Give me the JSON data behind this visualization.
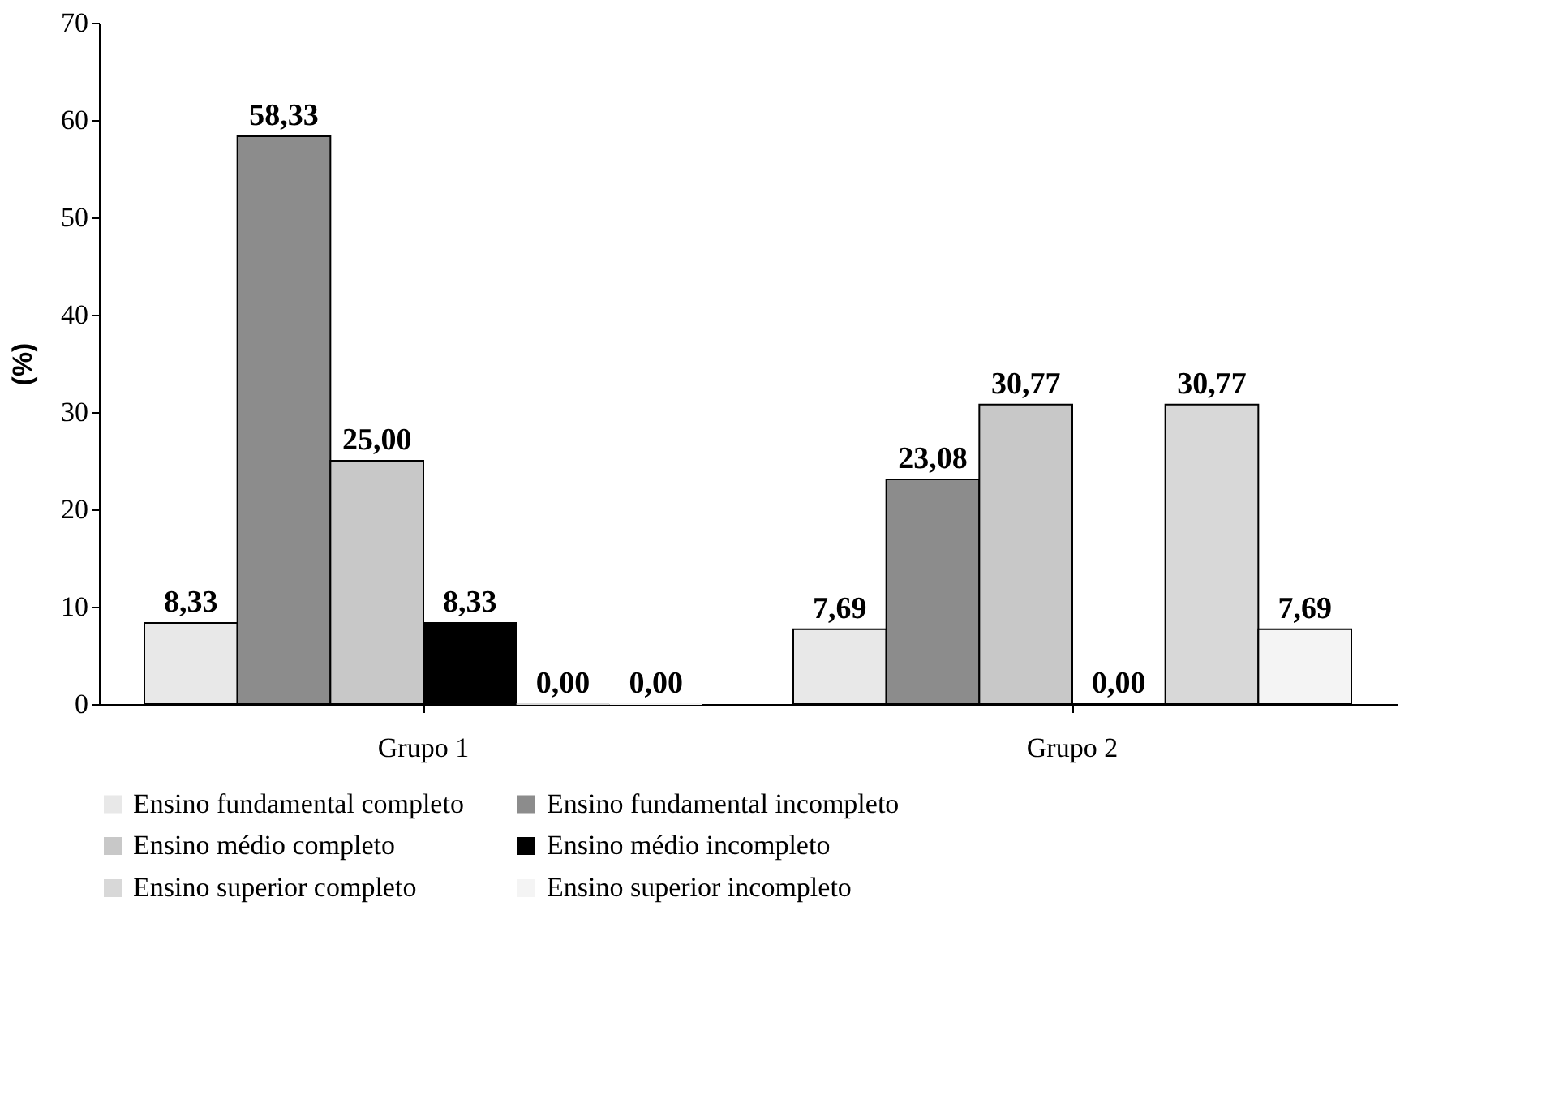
{
  "chart_data": {
    "type": "bar",
    "ylabel": "(%)",
    "categories": [
      "Grupo 1",
      "Grupo 2"
    ],
    "series": [
      {
        "name": "Ensino fundamental completo",
        "color": "#e8e8e8",
        "values": [
          8.33,
          7.69
        ],
        "value_labels": [
          "8,33",
          "7,69"
        ]
      },
      {
        "name": "Ensino fundamental incompleto",
        "color": "#8c8c8c",
        "values": [
          58.33,
          23.08
        ],
        "value_labels": [
          "58,33",
          "23,08"
        ]
      },
      {
        "name": "Ensino médio completo",
        "color": "#c8c8c8",
        "values": [
          25.0,
          30.77
        ],
        "value_labels": [
          "25,00",
          "30,77"
        ]
      },
      {
        "name": "Ensino médio incompleto",
        "color": "#000000",
        "values": [
          8.33,
          0.0
        ],
        "value_labels": [
          "8,33",
          "0,00"
        ]
      },
      {
        "name": "Ensino superior completo",
        "color": "#d8d8d8",
        "values": [
          0.0,
          30.77
        ],
        "value_labels": [
          "0,00",
          "30,77"
        ]
      },
      {
        "name": "Ensino superior incompleto",
        "color": "#f4f4f4",
        "values": [
          0.0,
          7.69
        ],
        "value_labels": [
          "0,00",
          "7,69"
        ]
      }
    ],
    "ylim": [
      0,
      70
    ],
    "yticks": [
      0,
      10,
      20,
      30,
      40,
      50,
      60,
      70
    ],
    "grid": false,
    "legend": "bottom"
  }
}
